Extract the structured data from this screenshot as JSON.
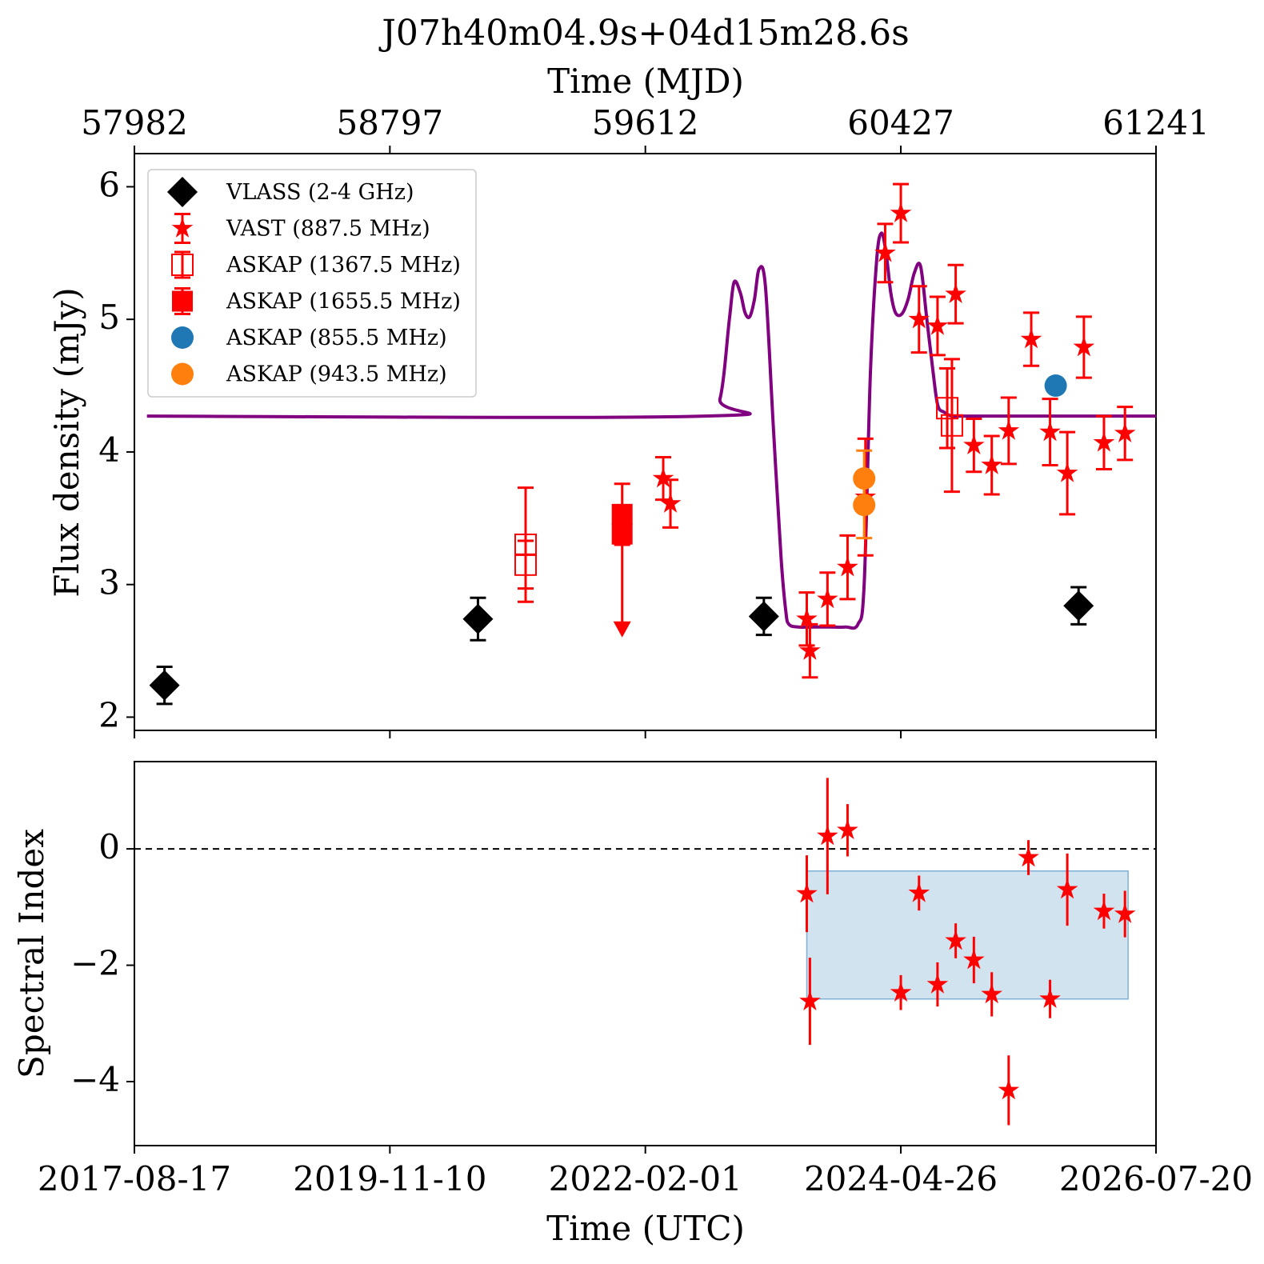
{
  "chart_data": [
    {
      "type": "scatter",
      "title": "J07h40m04.9s+04d15m28.6s",
      "top_axis": {
        "label": "Time (MJD)",
        "ticks": [
          "57982",
          "58797",
          "59612",
          "60427",
          "61241"
        ],
        "tick_values": [
          57982,
          58797,
          59612,
          60427,
          61241
        ]
      },
      "ylabel": "Flux density (mJy)",
      "xlim_mjd": [
        57982,
        61241
      ],
      "ylim": [
        1.9,
        6.25
      ],
      "y_ticks": [
        "2",
        "3",
        "4",
        "5",
        "6"
      ],
      "y_tick_values": [
        2,
        3,
        4,
        5,
        6
      ],
      "grid": false,
      "legend_position": "top-left",
      "legend": [
        {
          "label": "VLASS (2-4 GHz)",
          "marker": "diamond",
          "color": "#000000",
          "filled": true
        },
        {
          "label": "VAST (887.5 MHz)",
          "marker": "star",
          "color": "#ff0000",
          "filled": true
        },
        {
          "label": "ASKAP (1367.5 MHz)",
          "marker": "square",
          "color": "#ff0000",
          "filled": false
        },
        {
          "label": "ASKAP (1655.5 MHz)",
          "marker": "square",
          "color": "#ff0000",
          "filled": true
        },
        {
          "label": "ASKAP (855.5 MHz)",
          "marker": "circle",
          "color": "#1f77b4",
          "filled": true
        },
        {
          "label": "ASKAP (943.5 MHz)",
          "marker": "circle",
          "color": "#ff7f0e",
          "filled": true
        }
      ],
      "series": [
        {
          "name": "VLASS (2-4 GHz)",
          "x_mjd": [
            58078,
            59078,
            59990,
            60994
          ],
          "y": [
            2.24,
            2.74,
            2.76,
            2.84
          ],
          "yerr": [
            0.14,
            0.16,
            0.14,
            0.14
          ]
        },
        {
          "name": "VAST (887.5 MHz)",
          "x_mjd": [
            59669,
            59692,
            60127,
            60137,
            60193,
            60257,
            60314,
            60377,
            60427,
            60485,
            60544,
            60602,
            60660,
            60717,
            60771,
            60843,
            60903,
            60958,
            61011,
            61075,
            61142
          ],
          "y": [
            3.8,
            3.61,
            2.74,
            2.5,
            2.89,
            3.13,
            3.66,
            5.5,
            5.8,
            5.0,
            4.95,
            5.19,
            4.05,
            3.9,
            4.16,
            4.85,
            4.15,
            3.84,
            4.79,
            4.07,
            4.14
          ],
          "yerr": [
            0.16,
            0.18,
            0.2,
            0.2,
            0.2,
            0.24,
            0.44,
            0.22,
            0.22,
            0.25,
            0.22,
            0.22,
            0.2,
            0.22,
            0.25,
            0.2,
            0.25,
            0.31,
            0.23,
            0.2,
            0.2
          ]
        },
        {
          "name": "ASKAP (1367.5 MHz)",
          "x_mjd": [
            59230,
            59230,
            60575,
            60590
          ],
          "y": [
            3.3,
            3.15,
            4.33,
            4.2
          ],
          "yerr": [
            0.43,
            0.18,
            0.3,
            0.5
          ]
        },
        {
          "name": "ASKAP (1655.5 MHz)",
          "x_mjd": [
            59538,
            59538
          ],
          "y": [
            3.53,
            3.38
          ],
          "yerr": [
            0.23,
            0.0
          ],
          "upper_limit": [
            false,
            true
          ],
          "limit_to": [
            null,
            2.65
          ]
        },
        {
          "name": "ASKAP (855.5 MHz)",
          "x_mjd": [
            60921
          ],
          "y": [
            4.5
          ],
          "yerr": [
            0.0
          ]
        },
        {
          "name": "ASKAP (943.5 MHz)",
          "x_mjd": [
            60310,
            60310
          ],
          "y": [
            3.8,
            3.6
          ],
          "yerr": [
            0.21,
            0.25
          ]
        }
      ],
      "model_curve": {
        "color": "#800080",
        "x_mjd": [
          58022,
          59800,
          59850,
          59880,
          59895,
          59915,
          59930,
          59945,
          59960,
          59975,
          59995,
          60020,
          60045,
          60060,
          60070,
          60100,
          60150,
          60200,
          60250,
          60290,
          60310,
          60330,
          60350,
          60365,
          60380,
          60395,
          60410,
          60430,
          60450,
          60470,
          60490,
          60510,
          60530,
          60545,
          60565,
          60590,
          60620,
          60700,
          61241
        ],
        "y": [
          4.27,
          4.27,
          4.4,
          5.0,
          5.28,
          5.2,
          5.05,
          5.02,
          5.15,
          5.38,
          5.25,
          4.2,
          3.2,
          2.8,
          2.7,
          2.68,
          2.68,
          2.68,
          2.68,
          2.7,
          3.0,
          4.6,
          5.45,
          5.65,
          5.5,
          5.2,
          5.05,
          5.04,
          5.15,
          5.35,
          5.4,
          5.0,
          4.6,
          4.35,
          4.3,
          4.27,
          4.27,
          4.27,
          4.27
        ]
      }
    },
    {
      "type": "scatter",
      "xlabel": "Time (UTC)",
      "ylabel": "Spectral Index",
      "x_ticks": [
        "2017-08-17",
        "2019-11-10",
        "2022-02-01",
        "2024-04-26",
        "2026-07-20"
      ],
      "x_tick_values_mjd": [
        57982,
        58797,
        59612,
        60427,
        61241
      ],
      "xlim_mjd": [
        57982,
        61241
      ],
      "ylim": [
        -5.1,
        1.5
      ],
      "y_ticks": [
        "−4",
        "−2",
        "0"
      ],
      "y_tick_values": [
        -4,
        -2,
        0
      ],
      "grid": false,
      "reference_line": {
        "y": 0,
        "style": "dashed",
        "color": "#000000"
      },
      "shaded_band": {
        "x_mjd": [
          60127,
          61152
        ],
        "y": [
          -2.58,
          -0.38
        ],
        "color": "#a6c8e1"
      },
      "series": [
        {
          "name": "spectral_index",
          "x_mjd": [
            60127,
            60137,
            60193,
            60257,
            60427,
            60485,
            60544,
            60602,
            60660,
            60717,
            60771,
            60834,
            60903,
            60958,
            61075,
            61142
          ],
          "y": [
            -0.77,
            -2.62,
            0.22,
            0.32,
            -2.47,
            -0.76,
            -2.33,
            -1.58,
            -1.91,
            -2.5,
            -4.15,
            -0.15,
            -2.58,
            -0.7,
            -1.07,
            -1.12
          ],
          "yerr": [
            0.66,
            0.75,
            1.0,
            0.45,
            0.3,
            0.3,
            0.38,
            0.3,
            0.4,
            0.38,
            0.6,
            0.3,
            0.33,
            0.62,
            0.3,
            0.4
          ]
        }
      ]
    }
  ]
}
